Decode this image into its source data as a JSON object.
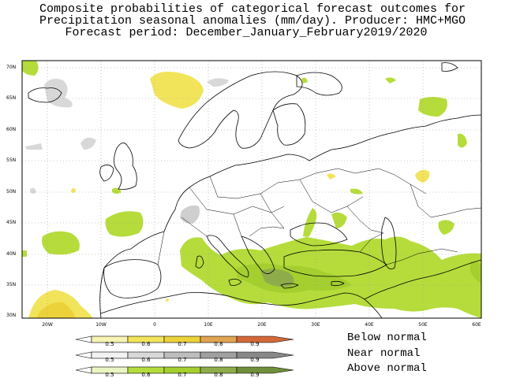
{
  "title": {
    "line1": "Composite probabilities of categorical forecast outcomes for",
    "line2": "Precipitation seasonal anomalies (mm/day). Producer: HMC+MGO",
    "line3": "Forecast period: December_January_February2019/2020"
  },
  "axes": {
    "lat_labels": [
      "70N",
      "65N",
      "60N",
      "55N",
      "50N",
      "45N",
      "40N",
      "35N",
      "30N"
    ],
    "lon_labels": [
      "20W",
      "10W",
      "0",
      "10E",
      "20E",
      "30E",
      "40E",
      "50E",
      "60E"
    ]
  },
  "legend": {
    "below_label": "Below normal",
    "near_label": "Near normal",
    "above_label": "Above normal",
    "tick_values": [
      "0.5",
      "0.6",
      "0.7",
      "0.8",
      "0.9"
    ],
    "below_colors": [
      "#f6f3b4",
      "#f2e45a",
      "#ecd23a",
      "#e0a552",
      "#d2683a"
    ],
    "near_colors": [
      "#f2f2f2",
      "#d8d8d8",
      "#bdbdbd",
      "#a0a0a0",
      "#888888"
    ],
    "above_colors": [
      "#eaf6c2",
      "#b5dc3b",
      "#a4cf2e",
      "#8fac4a",
      "#6f8f3a"
    ]
  },
  "map": {
    "graticule_color": "#9a9a9a",
    "coast_color": "#000000"
  }
}
